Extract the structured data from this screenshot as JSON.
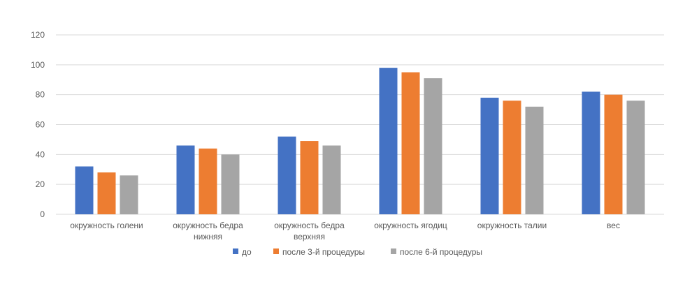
{
  "chart_data": {
    "type": "bar",
    "title": "",
    "xlabel": "",
    "ylabel": "",
    "ylim": [
      0,
      120
    ],
    "yticks": [
      0,
      20,
      40,
      60,
      80,
      100,
      120
    ],
    "grid": true,
    "legend_position": "bottom",
    "categories": [
      [
        "окружность  голени"
      ],
      [
        "окружность бедра",
        "нижняя"
      ],
      [
        "окружность  бедра",
        "верхняя"
      ],
      [
        "окружность  ягодиц"
      ],
      [
        "окружность талии"
      ],
      [
        "вес"
      ]
    ],
    "series": [
      {
        "name": "до",
        "color": "#4472c4",
        "values": [
          32,
          46,
          52,
          98,
          78,
          82
        ]
      },
      {
        "name": "после  3-й процедуры",
        "color": "#ed7d31",
        "values": [
          28,
          44,
          49,
          95,
          76,
          80
        ]
      },
      {
        "name": "после  6-й  процедуры",
        "color": "#a5a5a5",
        "values": [
          26,
          40,
          46,
          91,
          72,
          76
        ]
      }
    ]
  }
}
